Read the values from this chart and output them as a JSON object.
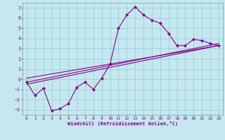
{
  "xlabel": "Windchill (Refroidissement éolien,°C)",
  "bg_color": "#c5e8ef",
  "grid_color": "#9ecdd8",
  "line_color": "#880088",
  "spine_color": "#6699aa",
  "xlim": [
    -0.5,
    23.5
  ],
  "ylim": [
    -3.5,
    7.5
  ],
  "xticks": [
    0,
    1,
    2,
    3,
    4,
    5,
    6,
    7,
    8,
    9,
    10,
    11,
    12,
    13,
    14,
    15,
    16,
    17,
    18,
    19,
    20,
    21,
    22,
    23
  ],
  "yticks": [
    -3,
    -2,
    -1,
    0,
    1,
    2,
    3,
    4,
    5,
    6,
    7
  ],
  "series": [
    [
      0,
      -0.3
    ],
    [
      1,
      -1.6
    ],
    [
      2,
      -0.9
    ],
    [
      3,
      -3.1
    ],
    [
      4,
      -2.9
    ],
    [
      5,
      -2.4
    ],
    [
      6,
      -0.8
    ],
    [
      7,
      -0.3
    ],
    [
      8,
      -1.0
    ],
    [
      9,
      0.1
    ],
    [
      10,
      1.5
    ],
    [
      11,
      5.0
    ],
    [
      12,
      6.3
    ],
    [
      13,
      7.1
    ],
    [
      14,
      6.3
    ],
    [
      15,
      5.8
    ],
    [
      16,
      5.5
    ],
    [
      17,
      4.5
    ],
    [
      18,
      3.3
    ],
    [
      19,
      3.3
    ],
    [
      20,
      3.9
    ],
    [
      21,
      3.8
    ],
    [
      22,
      3.5
    ],
    [
      23,
      3.3
    ]
  ],
  "trend_lines": [
    [
      [
        0,
        -0.5
      ],
      [
        23,
        3.3
      ]
    ],
    [
      [
        0,
        -0.3
      ],
      [
        23,
        3.5
      ]
    ],
    [
      [
        0,
        0.1
      ],
      [
        23,
        3.3
      ]
    ]
  ]
}
